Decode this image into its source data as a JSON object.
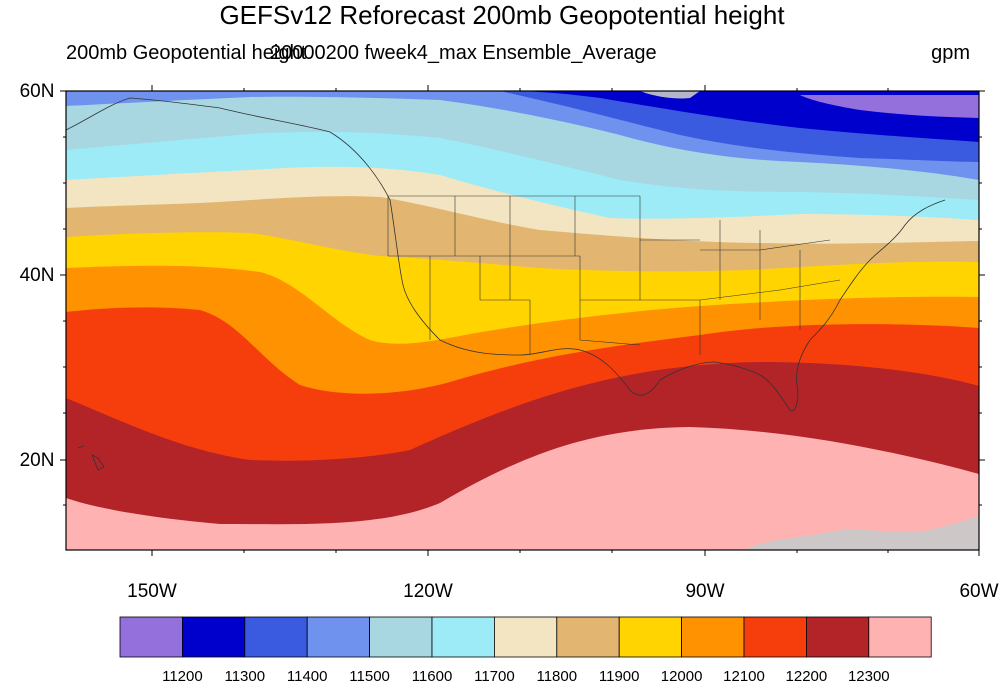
{
  "title": "GEFSv12 Reforecast 200mb Geopotential height",
  "subtitle_left": "200mb Geopotential height",
  "subtitle_center": "20000200 fweek4_max Ensemble_Average",
  "subtitle_right": "gpm",
  "axes": {
    "lat_ticks": [
      "60N",
      "40N",
      "20N"
    ],
    "lon_ticks": [
      "150W",
      "120W",
      "90W",
      "60W"
    ]
  },
  "colorbar": {
    "colors": [
      "#9370DB",
      "#0000CD",
      "#3A5BE0",
      "#6F92EE",
      "#A8D7E2",
      "#9CEBF6",
      "#F3E5C2",
      "#E2B670",
      "#FFD400",
      "#FF9200",
      "#F63E0C",
      "#B22428",
      "#FFB2B2"
    ],
    "labels": [
      "11200",
      "11300",
      "11400",
      "11500",
      "11600",
      "11700",
      "11800",
      "11900",
      "12000",
      "12100",
      "12200",
      "12300"
    ]
  },
  "map": {
    "domain": "North America and eastern Pacific, 10N-60N, 160W-60W",
    "field": "200mb geopotential height filled contours",
    "contour_interval": 100
  }
}
